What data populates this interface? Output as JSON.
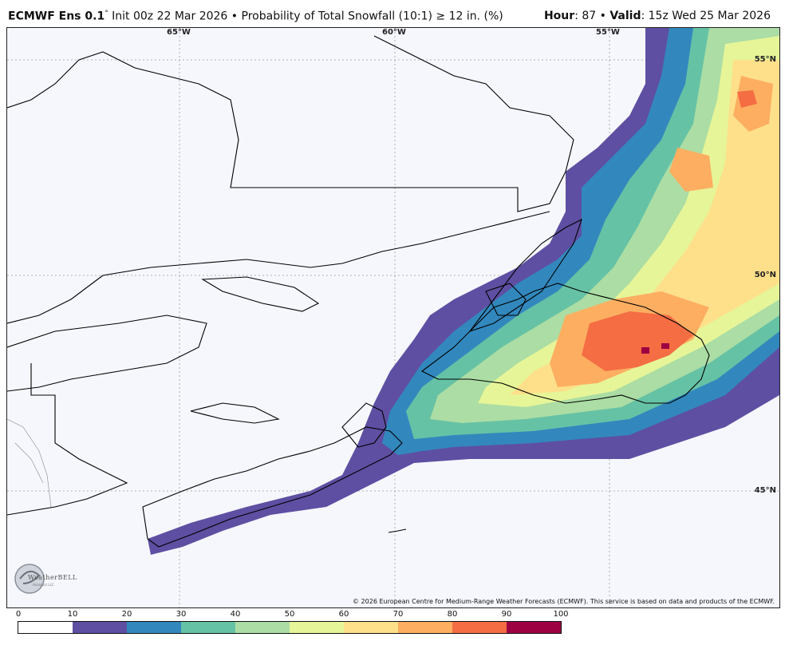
{
  "header": {
    "model": "ECMWF Ens 0.1",
    "degree": "°",
    "init": "Init 00z 22 Mar 2026",
    "bullet": "•",
    "product": "Probability of Total Snowfall (10:1)  ≥  12 in. (%)",
    "hour_label": "Hour",
    "hour_value": ": 87",
    "valid_label": "Valid",
    "valid_value": ": 15z Wed 25 Mar 2026"
  },
  "map": {
    "lon_labels": [
      "65°W",
      "60°W",
      "55°W"
    ],
    "lat_labels": [
      "55°N",
      "50°N",
      "45°N"
    ],
    "copyright": "© 2026 European Centre for Medium-Range Weather Forecasts (ECMWF). This service is based on data and products of the ECMWF.",
    "logo_text": "WeatherBELL",
    "logo_sub": "Analytics LLC"
  },
  "colorbar": {
    "ticks": [
      "0",
      "10",
      "20",
      "30",
      "40",
      "50",
      "60",
      "70",
      "80",
      "90",
      "100"
    ],
    "colors": [
      "#ffffff",
      "#5e4fa2",
      "#3288bd",
      "#66c2a5",
      "#abdda4",
      "#e6f598",
      "#fee08b",
      "#fdae61",
      "#f46d43",
      "#9e0142"
    ]
  }
}
